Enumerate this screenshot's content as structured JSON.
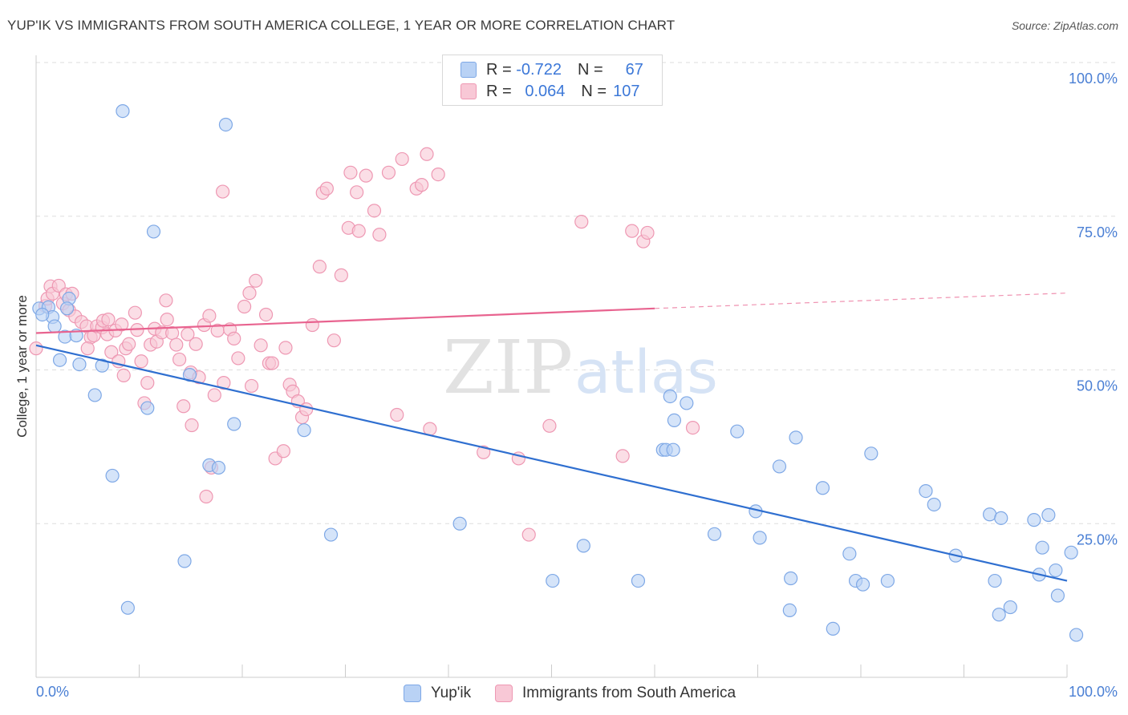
{
  "header": {
    "title": "YUP'IK VS IMMIGRANTS FROM SOUTH AMERICA COLLEGE, 1 YEAR OR MORE CORRELATION CHART",
    "source": "Source: ZipAtlas.com"
  },
  "legend": {
    "rows": [
      {
        "r_label": "R =",
        "r_value": "-0.722",
        "n_label": "N =",
        "n_value": "67"
      },
      {
        "r_label": "R =",
        "r_value": "0.064",
        "n_label": "N =",
        "n_value": "107"
      }
    ]
  },
  "watermark": {
    "part1": "ZIP",
    "part2": "atlas"
  },
  "colors": {
    "blue_fill": "#b9d2f5",
    "blue_stroke": "#7ea8e6",
    "blue_line": "#2f6fd0",
    "pink_fill": "#f8c8d6",
    "pink_stroke": "#ee98b3",
    "pink_line": "#e8638f",
    "tick_text": "#4a7fd4",
    "grid": "#dddddd"
  },
  "chart_data": {
    "type": "scatter",
    "title": "YUP'IK VS IMMIGRANTS FROM SOUTH AMERICA COLLEGE, 1 YEAR OR MORE CORRELATION CHART",
    "xlabel": "",
    "ylabel": "College, 1 year or more",
    "xlim": [
      0,
      100
    ],
    "ylim": [
      0,
      100
    ],
    "x_tick_labels": [
      "0.0%",
      "100.0%"
    ],
    "y_tick_labels": [
      "100.0%",
      "75.0%",
      "50.0%",
      "25.0%"
    ],
    "y_ticks": [
      100,
      75,
      50,
      25
    ],
    "grid": true,
    "legend_position": "top-center",
    "series": [
      {
        "name": "Yup'ik",
        "r": -0.722,
        "n": 67,
        "trend": {
          "x0": 0,
          "y0": 54.0,
          "x1": 100,
          "y1": 15.7
        },
        "points": [
          [
            0.3,
            60.0
          ],
          [
            1.2,
            60.2
          ],
          [
            1.6,
            58.6
          ],
          [
            1.8,
            57.1
          ],
          [
            2.3,
            51.6
          ],
          [
            2.8,
            55.4
          ],
          [
            3.2,
            61.6
          ],
          [
            3.9,
            55.6
          ],
          [
            4.2,
            50.9
          ],
          [
            5.7,
            45.9
          ],
          [
            6.4,
            50.7
          ],
          [
            7.4,
            32.8
          ],
          [
            8.4,
            92.1
          ],
          [
            8.9,
            11.3
          ],
          [
            10.8,
            43.8
          ],
          [
            11.4,
            72.5
          ],
          [
            14.4,
            18.9
          ],
          [
            14.9,
            49.2
          ],
          [
            16.8,
            34.5
          ],
          [
            17.7,
            34.1
          ],
          [
            18.4,
            89.9
          ],
          [
            19.2,
            41.2
          ],
          [
            26.0,
            40.2
          ],
          [
            28.6,
            23.2
          ],
          [
            41.1,
            25.0
          ],
          [
            50.1,
            15.7
          ],
          [
            53.1,
            21.4
          ],
          [
            58.4,
            15.7
          ],
          [
            60.8,
            37.0
          ],
          [
            61.1,
            37.0
          ],
          [
            61.5,
            45.7
          ],
          [
            61.8,
            37.0
          ],
          [
            61.9,
            41.8
          ],
          [
            63.1,
            44.6
          ],
          [
            65.8,
            23.3
          ],
          [
            68.0,
            40.0
          ],
          [
            69.8,
            27.0
          ],
          [
            70.2,
            22.7
          ],
          [
            72.1,
            34.3
          ],
          [
            73.1,
            10.9
          ],
          [
            73.2,
            16.1
          ],
          [
            73.7,
            39.0
          ],
          [
            76.3,
            30.8
          ],
          [
            77.3,
            7.9
          ],
          [
            78.9,
            20.1
          ],
          [
            79.5,
            15.7
          ],
          [
            80.2,
            15.1
          ],
          [
            81.0,
            36.4
          ],
          [
            82.6,
            15.7
          ],
          [
            86.3,
            30.3
          ],
          [
            87.1,
            28.1
          ],
          [
            89.2,
            19.8
          ],
          [
            92.5,
            26.5
          ],
          [
            93.0,
            15.7
          ],
          [
            93.4,
            10.2
          ],
          [
            93.6,
            25.9
          ],
          [
            94.5,
            11.4
          ],
          [
            96.8,
            25.6
          ],
          [
            97.3,
            16.7
          ],
          [
            97.6,
            21.1
          ],
          [
            98.2,
            26.4
          ],
          [
            98.9,
            17.4
          ],
          [
            99.1,
            13.3
          ],
          [
            100.4,
            20.3
          ],
          [
            100.9,
            6.9
          ],
          [
            0.6,
            59.0
          ],
          [
            3.0,
            60.0
          ]
        ]
      },
      {
        "name": "Immigrants from South America",
        "r": 0.064,
        "n": 107,
        "trend": {
          "x0": 0,
          "y0": 56.0,
          "x1": 60,
          "y1": 60.0,
          "dash_to_x": 100,
          "dash_to_y": 62.5
        },
        "points": [
          [
            0.0,
            53.5
          ],
          [
            0.9,
            60.4
          ],
          [
            1.1,
            61.6
          ],
          [
            1.4,
            63.6
          ],
          [
            1.6,
            62.4
          ],
          [
            2.2,
            63.7
          ],
          [
            2.6,
            60.8
          ],
          [
            2.9,
            62.3
          ],
          [
            3.2,
            59.7
          ],
          [
            3.5,
            62.4
          ],
          [
            3.8,
            58.7
          ],
          [
            4.4,
            57.8
          ],
          [
            4.9,
            57.1
          ],
          [
            5.3,
            55.3
          ],
          [
            5.6,
            55.6
          ],
          [
            5.9,
            57.1
          ],
          [
            6.4,
            56.9
          ],
          [
            6.5,
            58.0
          ],
          [
            6.9,
            55.8
          ],
          [
            7.0,
            58.2
          ],
          [
            7.3,
            52.9
          ],
          [
            7.7,
            56.4
          ],
          [
            8.0,
            51.4
          ],
          [
            8.3,
            57.4
          ],
          [
            8.5,
            49.1
          ],
          [
            8.7,
            53.5
          ],
          [
            9.0,
            54.2
          ],
          [
            9.6,
            59.3
          ],
          [
            9.8,
            56.5
          ],
          [
            10.2,
            51.4
          ],
          [
            10.5,
            44.6
          ],
          [
            10.8,
            47.9
          ],
          [
            11.1,
            54.1
          ],
          [
            11.5,
            56.7
          ],
          [
            11.7,
            54.6
          ],
          [
            12.2,
            56.1
          ],
          [
            12.7,
            58.2
          ],
          [
            13.2,
            56.0
          ],
          [
            13.6,
            54.1
          ],
          [
            13.9,
            51.7
          ],
          [
            14.3,
            44.1
          ],
          [
            14.7,
            55.8
          ],
          [
            15.0,
            49.6
          ],
          [
            15.5,
            54.2
          ],
          [
            15.8,
            48.8
          ],
          [
            16.3,
            57.3
          ],
          [
            16.8,
            58.8
          ],
          [
            17.3,
            45.9
          ],
          [
            17.6,
            56.4
          ],
          [
            18.2,
            47.9
          ],
          [
            18.8,
            56.6
          ],
          [
            19.2,
            55.1
          ],
          [
            19.6,
            51.9
          ],
          [
            20.2,
            60.3
          ],
          [
            20.7,
            62.5
          ],
          [
            21.3,
            64.5
          ],
          [
            21.8,
            54.0
          ],
          [
            22.3,
            59.0
          ],
          [
            22.6,
            51.1
          ],
          [
            23.2,
            35.6
          ],
          [
            24.2,
            53.6
          ],
          [
            24.6,
            47.6
          ],
          [
            24.9,
            46.5
          ],
          [
            25.4,
            44.9
          ],
          [
            25.8,
            42.3
          ],
          [
            26.2,
            43.6
          ],
          [
            26.8,
            57.3
          ],
          [
            27.5,
            66.8
          ],
          [
            27.8,
            78.8
          ],
          [
            28.2,
            79.5
          ],
          [
            28.9,
            54.8
          ],
          [
            29.6,
            65.4
          ],
          [
            30.3,
            73.1
          ],
          [
            30.5,
            82.1
          ],
          [
            31.1,
            78.9
          ],
          [
            31.3,
            72.6
          ],
          [
            32.0,
            81.6
          ],
          [
            32.8,
            75.9
          ],
          [
            33.3,
            72.0
          ],
          [
            34.2,
            82.1
          ],
          [
            35.5,
            84.3
          ],
          [
            36.9,
            79.5
          ],
          [
            37.4,
            80.1
          ],
          [
            37.9,
            85.1
          ],
          [
            39.0,
            81.8
          ],
          [
            18.1,
            79.0
          ],
          [
            16.5,
            29.4
          ],
          [
            17.0,
            34.1
          ],
          [
            15.1,
            41.0
          ],
          [
            20.9,
            47.4
          ],
          [
            22.9,
            51.1
          ],
          [
            24.0,
            36.8
          ],
          [
            35.0,
            42.7
          ],
          [
            38.2,
            40.4
          ],
          [
            43.4,
            36.6
          ],
          [
            46.8,
            35.6
          ],
          [
            47.8,
            23.2
          ],
          [
            49.8,
            40.9
          ],
          [
            52.9,
            74.1
          ],
          [
            56.9,
            36.0
          ],
          [
            57.8,
            72.6
          ],
          [
            58.9,
            70.9
          ],
          [
            59.3,
            72.3
          ],
          [
            63.7,
            40.6
          ],
          [
            12.6,
            61.3
          ],
          [
            5.0,
            53.5
          ]
        ]
      }
    ]
  }
}
